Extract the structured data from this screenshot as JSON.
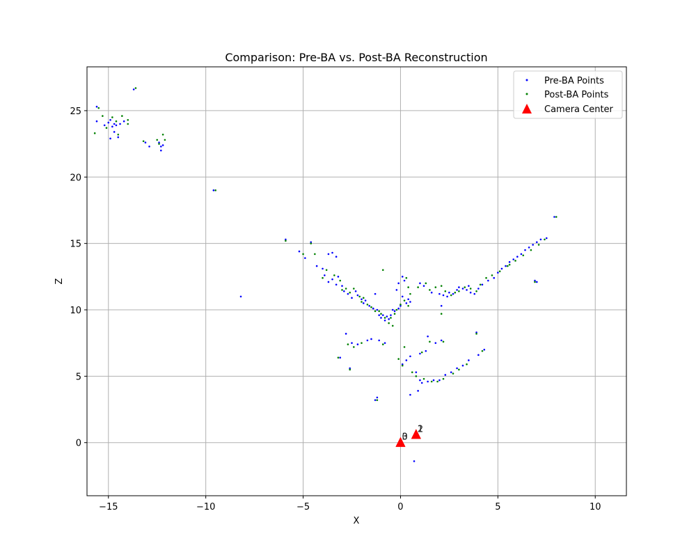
{
  "chart_data": {
    "type": "scatter",
    "title": "Comparison: Pre-BA vs. Post-BA Reconstruction",
    "xlabel": "X",
    "ylabel": "Z",
    "xlim": [
      -16.1,
      11.6
    ],
    "ylim": [
      -4.0,
      28.3
    ],
    "xticks": [
      -15,
      -10,
      -5,
      0,
      5,
      10
    ],
    "yticks": [
      0,
      5,
      10,
      15,
      20,
      25
    ],
    "grid": true,
    "legend_position": "upper right",
    "series": [
      {
        "name": "Pre-BA Points",
        "color": "#0000ff",
        "marker": "dot",
        "points": [
          [
            -15.6,
            25.3
          ],
          [
            -15.6,
            24.2
          ],
          [
            -15.2,
            23.9
          ],
          [
            -15.0,
            24.1
          ],
          [
            -14.9,
            24.3
          ],
          [
            -14.8,
            23.8
          ],
          [
            -14.7,
            23.4
          ],
          [
            -14.6,
            23.9
          ],
          [
            -14.5,
            23.0
          ],
          [
            -14.9,
            22.9
          ],
          [
            -14.7,
            24.0
          ],
          [
            -14.4,
            24.0
          ],
          [
            -14.2,
            24.2
          ],
          [
            -13.7,
            26.6
          ],
          [
            -13.1,
            22.6
          ],
          [
            -12.9,
            22.3
          ],
          [
            -12.4,
            22.6
          ],
          [
            -12.3,
            22.3
          ],
          [
            -12.3,
            22.0
          ],
          [
            -12.2,
            22.4
          ],
          [
            -9.6,
            19.0
          ],
          [
            -8.2,
            11.0
          ],
          [
            -5.9,
            15.3
          ],
          [
            -5.2,
            14.4
          ],
          [
            -4.9,
            13.9
          ],
          [
            -4.6,
            15.1
          ],
          [
            -4.3,
            13.3
          ],
          [
            -4.0,
            13.1
          ],
          [
            -3.9,
            12.6
          ],
          [
            -3.7,
            14.2
          ],
          [
            -3.5,
            14.3
          ],
          [
            -3.3,
            14.0
          ],
          [
            -3.7,
            12.1
          ],
          [
            -3.5,
            12.3
          ],
          [
            -3.3,
            11.9
          ],
          [
            -3.2,
            12.5
          ],
          [
            -3.0,
            11.8
          ],
          [
            -2.9,
            11.4
          ],
          [
            -2.7,
            11.2
          ],
          [
            -2.5,
            10.9
          ],
          [
            -2.3,
            11.4
          ],
          [
            -2.2,
            11.1
          ],
          [
            -2.0,
            10.8
          ],
          [
            -1.9,
            10.5
          ],
          [
            -1.8,
            10.7
          ],
          [
            -1.6,
            10.3
          ],
          [
            -1.4,
            10.1
          ],
          [
            -1.2,
            10.0
          ],
          [
            -1.1,
            9.6
          ],
          [
            -1.0,
            9.4
          ],
          [
            -0.9,
            9.6
          ],
          [
            -0.8,
            9.2
          ],
          [
            -0.7,
            9.5
          ],
          [
            -0.6,
            9.3
          ],
          [
            -0.5,
            9.6
          ],
          [
            -0.4,
            10.0
          ],
          [
            -0.3,
            9.9
          ],
          [
            -0.1,
            10.1
          ],
          [
            0.0,
            10.3
          ],
          [
            0.1,
            11.0
          ],
          [
            0.2,
            12.2
          ],
          [
            0.3,
            10.5
          ],
          [
            0.4,
            10.8
          ],
          [
            0.5,
            10.6
          ],
          [
            -0.2,
            11.5
          ],
          [
            -0.1,
            12.0
          ],
          [
            0.1,
            12.5
          ],
          [
            1.0,
            12.0
          ],
          [
            1.2,
            11.8
          ],
          [
            1.6,
            11.3
          ],
          [
            2.0,
            11.2
          ],
          [
            2.2,
            11.1
          ],
          [
            2.4,
            11.0
          ],
          [
            2.5,
            11.3
          ],
          [
            2.7,
            11.2
          ],
          [
            2.9,
            11.5
          ],
          [
            3.0,
            11.7
          ],
          [
            3.2,
            11.6
          ],
          [
            3.4,
            11.5
          ],
          [
            3.5,
            11.8
          ],
          [
            3.6,
            11.3
          ],
          [
            3.8,
            11.2
          ],
          [
            4.0,
            11.6
          ],
          [
            4.2,
            11.9
          ],
          [
            4.5,
            12.2
          ],
          [
            4.8,
            12.4
          ],
          [
            5.0,
            12.8
          ],
          [
            5.2,
            13.1
          ],
          [
            5.4,
            13.3
          ],
          [
            5.6,
            13.6
          ],
          [
            5.8,
            13.8
          ],
          [
            6.0,
            14.0
          ],
          [
            6.2,
            14.2
          ],
          [
            6.4,
            14.5
          ],
          [
            6.6,
            14.7
          ],
          [
            6.8,
            14.9
          ],
          [
            7.0,
            15.1
          ],
          [
            7.2,
            15.3
          ],
          [
            7.5,
            15.4
          ],
          [
            7.9,
            17.0
          ],
          [
            6.9,
            12.2
          ],
          [
            7.0,
            12.1
          ],
          [
            2.1,
            10.3
          ],
          [
            -2.8,
            8.2
          ],
          [
            -2.5,
            7.5
          ],
          [
            -2.2,
            7.4
          ],
          [
            -1.7,
            7.7
          ],
          [
            -1.5,
            7.8
          ],
          [
            -1.1,
            7.7
          ],
          [
            -0.8,
            7.5
          ],
          [
            0.1,
            5.9
          ],
          [
            0.3,
            6.2
          ],
          [
            0.5,
            6.5
          ],
          [
            0.8,
            5.3
          ],
          [
            1.0,
            4.7
          ],
          [
            1.1,
            4.5
          ],
          [
            1.4,
            4.6
          ],
          [
            1.7,
            4.7
          ],
          [
            2.0,
            4.7
          ],
          [
            2.3,
            5.1
          ],
          [
            2.6,
            5.3
          ],
          [
            2.9,
            5.6
          ],
          [
            3.2,
            5.8
          ],
          [
            3.5,
            6.2
          ],
          [
            4.0,
            6.6
          ],
          [
            4.3,
            7.0
          ],
          [
            1.4,
            8.0
          ],
          [
            1.8,
            7.5
          ],
          [
            2.1,
            7.7
          ],
          [
            1.0,
            6.7
          ],
          [
            1.3,
            6.9
          ],
          [
            3.9,
            8.3
          ],
          [
            -1.3,
            3.2
          ],
          [
            -1.2,
            3.4
          ],
          [
            0.5,
            3.6
          ],
          [
            0.9,
            3.9
          ],
          [
            0.7,
            -1.4
          ],
          [
            -3.1,
            6.4
          ],
          [
            -2.6,
            5.6
          ],
          [
            -1.3,
            11.2
          ]
        ]
      },
      {
        "name": "Post-BA Points",
        "color": "#008000",
        "marker": "dot",
        "points": [
          [
            -15.5,
            25.2
          ],
          [
            -15.7,
            23.3
          ],
          [
            -15.3,
            24.6
          ],
          [
            -15.1,
            23.7
          ],
          [
            -14.8,
            24.5
          ],
          [
            -14.6,
            24.2
          ],
          [
            -14.5,
            23.2
          ],
          [
            -14.3,
            24.6
          ],
          [
            -14.0,
            24.3
          ],
          [
            -14.0,
            24.0
          ],
          [
            -13.6,
            26.7
          ],
          [
            -13.2,
            22.7
          ],
          [
            -12.5,
            22.8
          ],
          [
            -12.4,
            22.5
          ],
          [
            -12.2,
            23.2
          ],
          [
            -12.1,
            22.8
          ],
          [
            -9.5,
            19.0
          ],
          [
            -5.9,
            15.2
          ],
          [
            -4.6,
            15.0
          ],
          [
            -4.4,
            14.2
          ],
          [
            -3.8,
            13.0
          ],
          [
            -3.4,
            12.6
          ],
          [
            -3.1,
            12.2
          ],
          [
            -2.8,
            11.6
          ],
          [
            -2.6,
            11.3
          ],
          [
            -2.4,
            11.6
          ],
          [
            -2.1,
            11.0
          ],
          [
            -1.9,
            10.9
          ],
          [
            -1.7,
            10.4
          ],
          [
            -1.5,
            10.2
          ],
          [
            -1.3,
            9.9
          ],
          [
            -1.0,
            9.7
          ],
          [
            -0.8,
            9.4
          ],
          [
            -0.6,
            9.0
          ],
          [
            -0.5,
            9.4
          ],
          [
            -0.3,
            9.7
          ],
          [
            -0.2,
            10.0
          ],
          [
            0.0,
            10.4
          ],
          [
            0.2,
            10.7
          ],
          [
            0.4,
            10.3
          ],
          [
            0.5,
            11.2
          ],
          [
            0.9,
            11.7
          ],
          [
            1.3,
            12.0
          ],
          [
            1.8,
            11.7
          ],
          [
            2.3,
            11.4
          ],
          [
            2.6,
            11.1
          ],
          [
            2.8,
            11.3
          ],
          [
            3.0,
            11.4
          ],
          [
            3.3,
            11.7
          ],
          [
            3.6,
            11.6
          ],
          [
            3.9,
            11.4
          ],
          [
            4.1,
            11.9
          ],
          [
            4.4,
            12.4
          ],
          [
            4.7,
            12.6
          ],
          [
            5.1,
            12.9
          ],
          [
            5.5,
            13.3
          ],
          [
            5.9,
            13.7
          ],
          [
            6.3,
            14.1
          ],
          [
            6.7,
            14.5
          ],
          [
            7.1,
            14.9
          ],
          [
            7.4,
            15.3
          ],
          [
            8.0,
            17.0
          ],
          [
            6.9,
            12.1
          ],
          [
            -2.7,
            7.4
          ],
          [
            -2.4,
            7.2
          ],
          [
            -2.0,
            7.5
          ],
          [
            -0.9,
            7.4
          ],
          [
            -0.1,
            6.3
          ],
          [
            0.2,
            7.2
          ],
          [
            0.6,
            5.3
          ],
          [
            0.8,
            5.0
          ],
          [
            1.2,
            4.8
          ],
          [
            1.6,
            4.6
          ],
          [
            1.9,
            4.6
          ],
          [
            2.2,
            4.8
          ],
          [
            2.7,
            5.2
          ],
          [
            3.0,
            5.5
          ],
          [
            3.4,
            5.9
          ],
          [
            4.2,
            6.9
          ],
          [
            1.5,
            7.6
          ],
          [
            2.2,
            7.6
          ],
          [
            1.1,
            6.8
          ],
          [
            3.9,
            8.2
          ],
          [
            -1.2,
            3.2
          ],
          [
            -2.6,
            5.5
          ],
          [
            -3.2,
            6.4
          ],
          [
            0.1,
            5.8
          ],
          [
            2.1,
            9.7
          ],
          [
            -0.9,
            13.0
          ],
          [
            0.3,
            12.4
          ],
          [
            2.1,
            11.8
          ],
          [
            -5.0,
            14.2
          ],
          [
            -4.0,
            12.4
          ],
          [
            -3.0,
            11.5
          ],
          [
            -2.0,
            10.6
          ],
          [
            -1.1,
            9.9
          ],
          [
            -0.4,
            8.8
          ],
          [
            0.4,
            11.7
          ],
          [
            1.5,
            11.5
          ],
          [
            5.6,
            13.4
          ]
        ]
      },
      {
        "name": "Camera Center",
        "color": "#ff0000",
        "marker": "triangle",
        "points": [
          [
            0.0,
            0.0
          ],
          [
            0.0,
            0.0
          ],
          [
            0.8,
            0.6
          ],
          [
            0.8,
            0.6
          ]
        ],
        "labels": [
          "0",
          "3",
          "1",
          "2"
        ]
      }
    ]
  }
}
